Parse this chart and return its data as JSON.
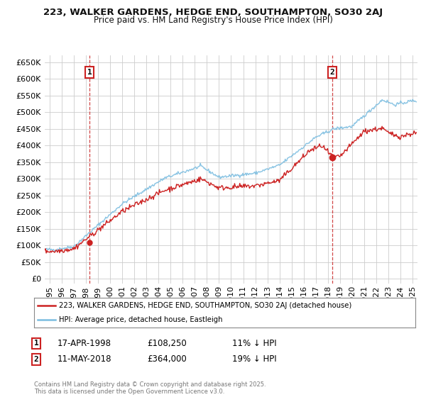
{
  "title_line1": "223, WALKER GARDENS, HEDGE END, SOUTHAMPTON, SO30 2AJ",
  "title_line2": "Price paid vs. HM Land Registry's House Price Index (HPI)",
  "ytick_values": [
    0,
    50000,
    100000,
    150000,
    200000,
    250000,
    300000,
    350000,
    400000,
    450000,
    500000,
    550000,
    600000,
    650000
  ],
  "xlim_start": 1994.6,
  "xlim_end": 2025.4,
  "ylim_bottom": -15000,
  "ylim_top": 670000,
  "hpi_color": "#7bbde0",
  "price_color": "#cc2222",
  "marker1_year": 1998.29,
  "marker1_price": 108250,
  "marker2_year": 2018.36,
  "marker2_price": 364000,
  "vline_color": "#cc3333",
  "legend_label1": "223, WALKER GARDENS, HEDGE END, SOUTHAMPTON, SO30 2AJ (detached house)",
  "legend_label2": "HPI: Average price, detached house, Eastleigh",
  "footer_text": "Contains HM Land Registry data © Crown copyright and database right 2025.\nThis data is licensed under the Open Government Licence v3.0.",
  "table_rows": [
    {
      "num": "1",
      "date": "17-APR-1998",
      "price": "£108,250",
      "pct": "11% ↓ HPI"
    },
    {
      "num": "2",
      "date": "11-MAY-2018",
      "price": "£364,000",
      "pct": "19% ↓ HPI"
    }
  ],
  "background_color": "#ffffff",
  "grid_color": "#cccccc"
}
